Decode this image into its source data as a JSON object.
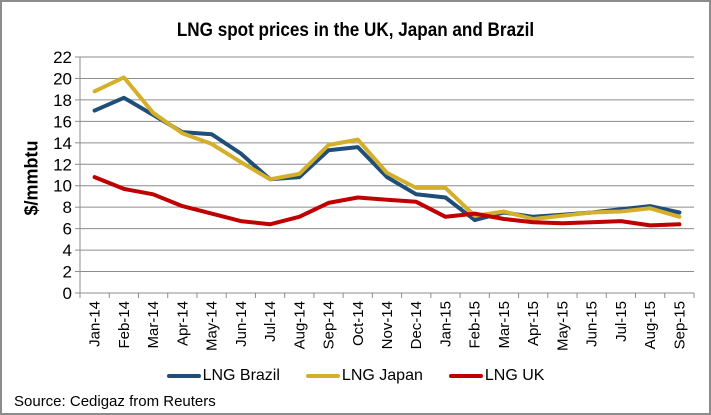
{
  "chart_data": {
    "type": "line",
    "title": "LNG spot prices in the UK, Japan and Brazil",
    "xlabel": "",
    "ylabel": "$/mmbtu",
    "ylim": [
      0,
      22
    ],
    "yticks": [
      0,
      2,
      4,
      6,
      8,
      10,
      12,
      14,
      16,
      18,
      20,
      22
    ],
    "grid": true,
    "legend_position": "bottom",
    "categories": [
      "Jan-14",
      "Feb-14",
      "Mar-14",
      "Apr-14",
      "May-14",
      "Jun-14",
      "Jul-14",
      "Aug-14",
      "Sep-14",
      "Oct-14",
      "Nov-14",
      "Dec-14",
      "Jan-15",
      "Feb-15",
      "Mar-15",
      "Apr-15",
      "May-15",
      "Jun-15",
      "Jul-15",
      "Aug-15",
      "Sep-15"
    ],
    "series": [
      {
        "name": "LNG Brazil",
        "color": "#1f4e79",
        "values": [
          17.0,
          18.2,
          16.6,
          15.0,
          14.8,
          13.0,
          10.6,
          10.8,
          13.3,
          13.6,
          10.8,
          9.2,
          8.9,
          6.8,
          7.5,
          7.1,
          7.3,
          7.5,
          7.8,
          8.1,
          7.5
        ]
      },
      {
        "name": "LNG Japan",
        "color": "#d4b02a",
        "values": [
          18.8,
          20.1,
          16.8,
          14.9,
          13.9,
          12.2,
          10.6,
          11.1,
          13.8,
          14.3,
          11.2,
          9.8,
          9.8,
          7.2,
          7.6,
          6.9,
          7.2,
          7.5,
          7.6,
          7.9,
          7.1
        ]
      },
      {
        "name": "LNG UK",
        "color": "#c00000",
        "values": [
          10.8,
          9.7,
          9.2,
          8.1,
          7.4,
          6.7,
          6.4,
          7.1,
          8.4,
          8.9,
          8.7,
          8.5,
          7.1,
          7.4,
          6.9,
          6.6,
          6.5,
          6.6,
          6.7,
          6.3,
          6.4
        ]
      }
    ],
    "source": "Source: Cedigaz from Reuters"
  }
}
